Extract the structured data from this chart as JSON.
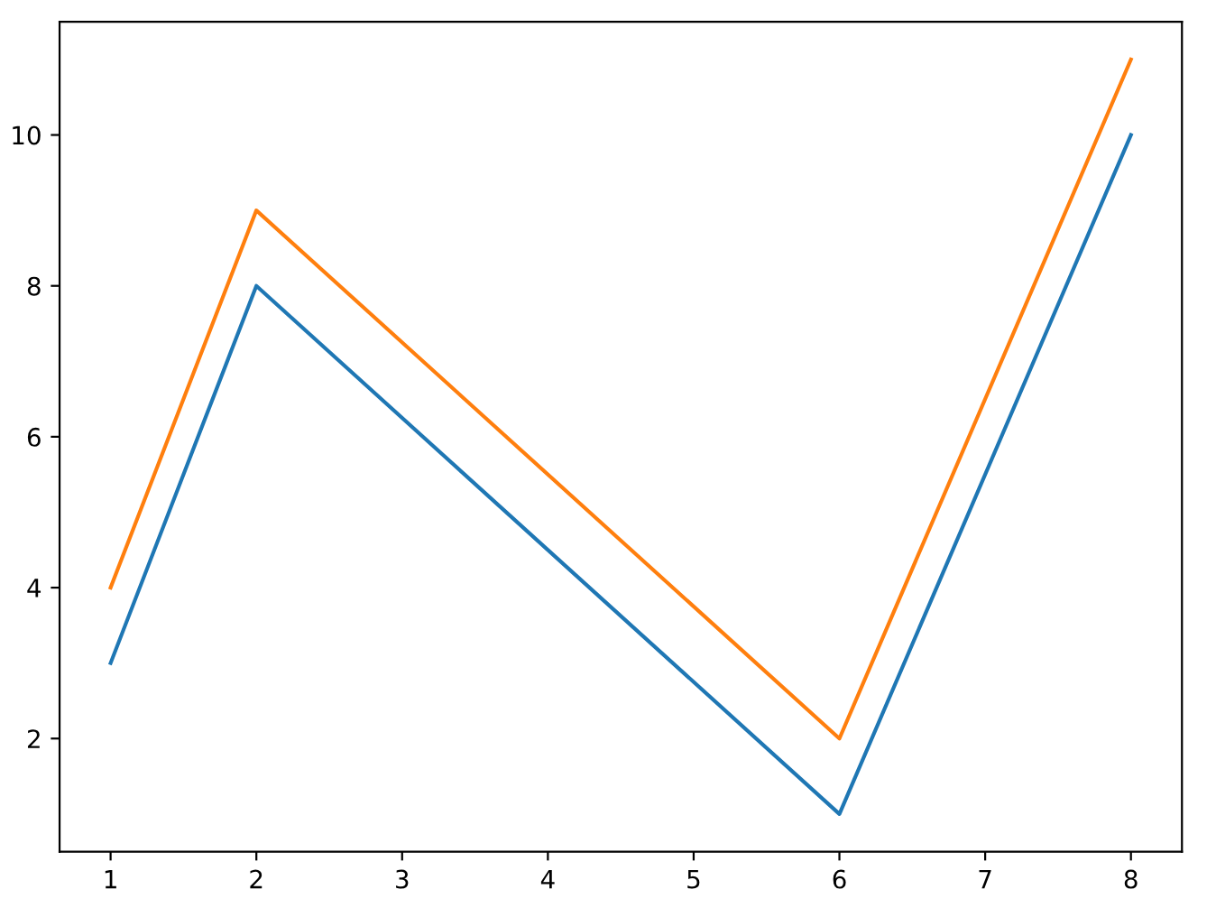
{
  "chart_data": {
    "type": "line",
    "x": [
      1,
      2,
      6,
      8
    ],
    "series": [
      {
        "color": "#1f77b4",
        "values": [
          3,
          8,
          1,
          10
        ]
      },
      {
        "color": "#ff7f0e",
        "values": [
          4,
          9,
          2,
          11
        ]
      }
    ],
    "xlim": [
      0.65,
      8.35
    ],
    "ylim": [
      0.5,
      11.5
    ],
    "xticks": [
      1,
      2,
      3,
      4,
      5,
      6,
      7,
      8
    ],
    "yticks": [
      2,
      4,
      6,
      8,
      10
    ],
    "grid": false
  }
}
